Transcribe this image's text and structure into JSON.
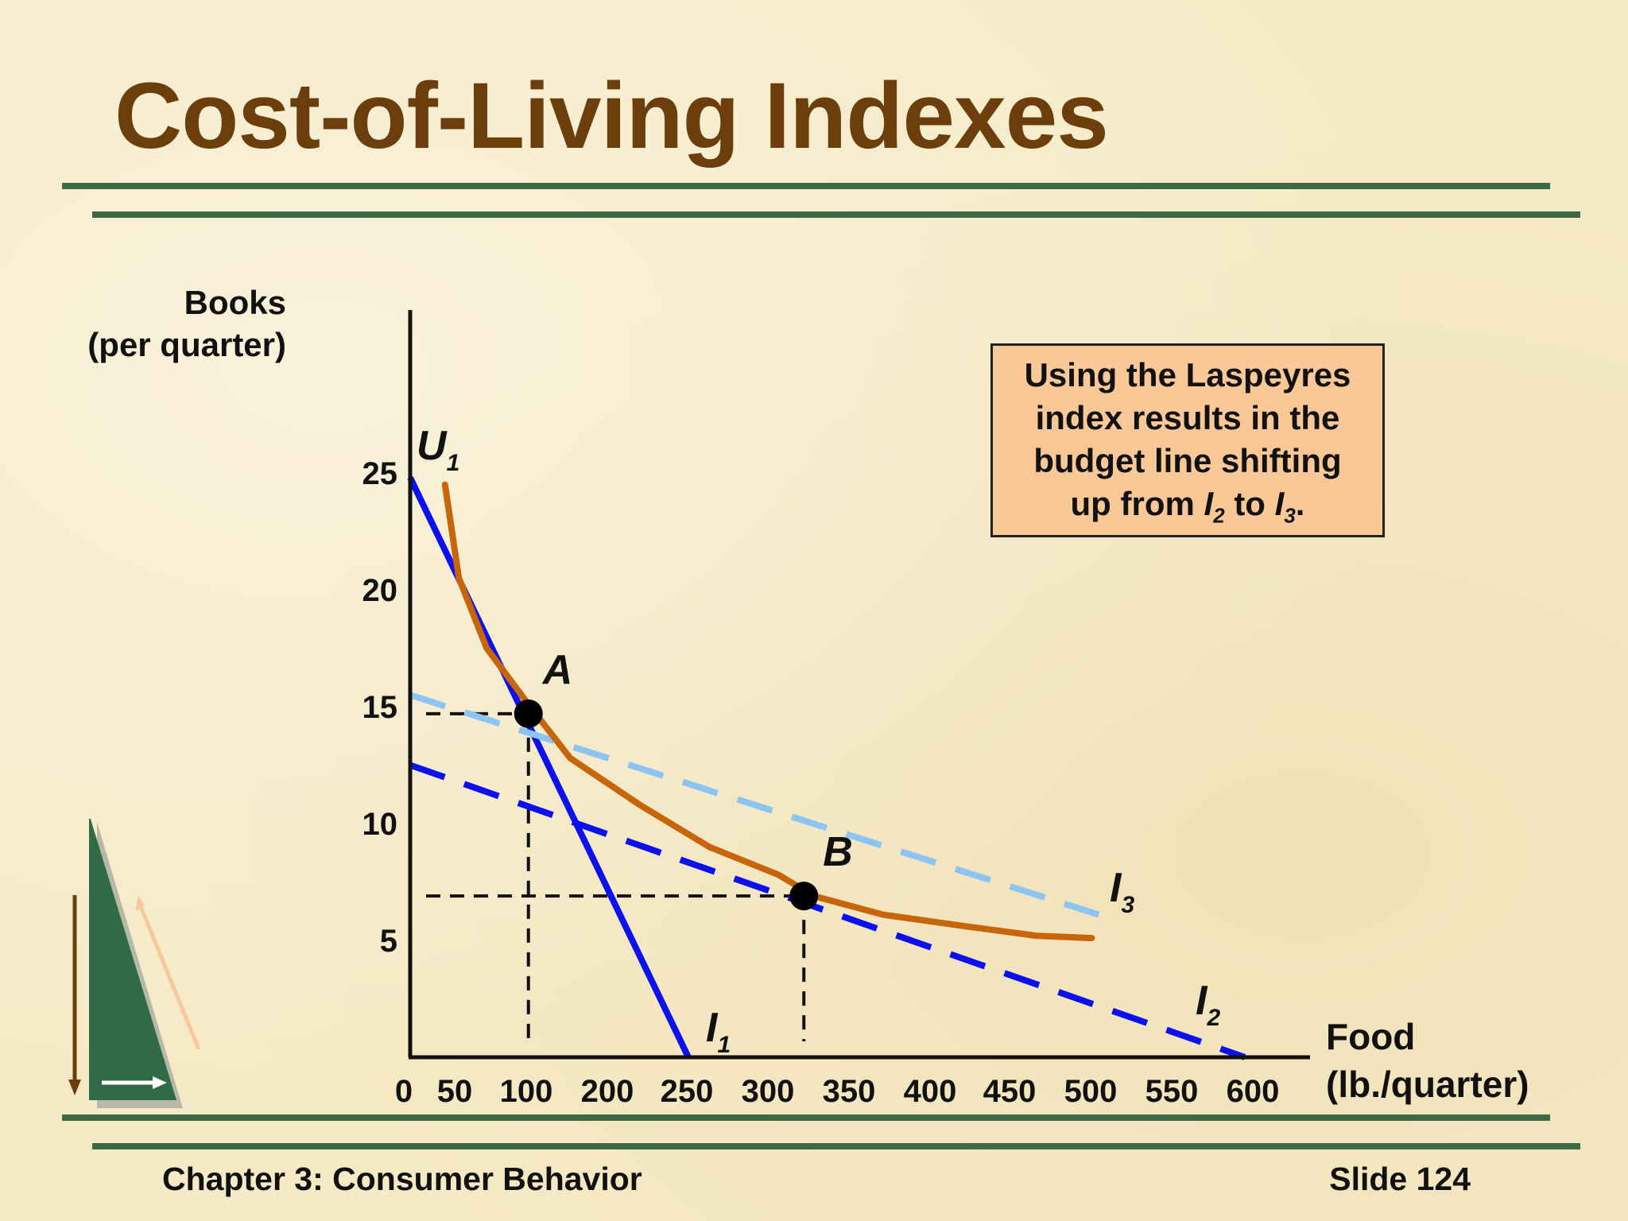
{
  "title": "Cost-of-Living Indexes",
  "footer": {
    "chapter": "Chapter 3: Consumer Behavior",
    "slide": "Slide 124"
  },
  "callout": {
    "line1": "Using the Laspeyres",
    "line2": "index results in the",
    "line3": "budget line shifting",
    "line4_prefix": "up from ",
    "line4_a": "I",
    "line4_a_sub": "2",
    "line4_mid": " to ",
    "line4_b": "I",
    "line4_b_sub": "3",
    "line4_end": "."
  },
  "y_title": {
    "line1": "Books",
    "line2": "(per quarter)"
  },
  "x_title": {
    "line1": "Food",
    "line2": "(lb./quarter)"
  },
  "colors": {
    "title": "#6b3e0c",
    "rules": "#3b6a45",
    "I1": "#0a10ee",
    "I2": "#0a10ee",
    "I3": "#8cc4f4",
    "U1": "#c8650a",
    "callout_fill": "#f9c896"
  },
  "chart_data": {
    "type": "line",
    "x_ticks": [
      "0",
      "50",
      "100",
      "200",
      "250",
      "300",
      "350",
      "400",
      "450",
      "500",
      "550",
      "600"
    ],
    "y_ticks": [
      "5",
      "10",
      "15",
      "20",
      "25"
    ],
    "xlim": [
      0,
      600
    ],
    "ylim": [
      0,
      25
    ],
    "series": [
      {
        "name": "I1",
        "style": "solid",
        "color": "#0a10ee",
        "points": [
          [
            0,
            24.8
          ],
          [
            200,
            0
          ]
        ]
      },
      {
        "name": "I2",
        "style": "dashed",
        "color": "#0a10ee",
        "points": [
          [
            0,
            12.5
          ],
          [
            600,
            0
          ]
        ]
      },
      {
        "name": "I3",
        "style": "dashed",
        "color": "#8cc4f4",
        "points": [
          [
            0,
            15.5
          ],
          [
            495,
            6.1
          ]
        ]
      },
      {
        "name": "U1",
        "style": "solid",
        "color": "#c8650a",
        "points": [
          [
            25,
            24.5
          ],
          [
            35,
            20.5
          ],
          [
            55,
            17.5
          ],
          [
            85,
            15.1
          ],
          [
            115,
            12.8
          ],
          [
            165,
            10.8
          ],
          [
            215,
            9.0
          ],
          [
            265,
            7.8
          ],
          [
            290,
            6.9
          ],
          [
            340,
            6.1
          ],
          [
            400,
            5.6
          ],
          [
            450,
            5.2
          ],
          [
            490,
            5.1
          ]
        ]
      }
    ],
    "points": [
      {
        "label": "A",
        "x": 85,
        "y": 14.7
      },
      {
        "label": "B",
        "x": 283,
        "y": 6.9
      }
    ],
    "series_labels": [
      {
        "text": "I",
        "sub": "1"
      },
      {
        "text": "I",
        "sub": "2"
      },
      {
        "text": "I",
        "sub": "3"
      },
      {
        "text": "U",
        "sub": "1"
      }
    ]
  }
}
